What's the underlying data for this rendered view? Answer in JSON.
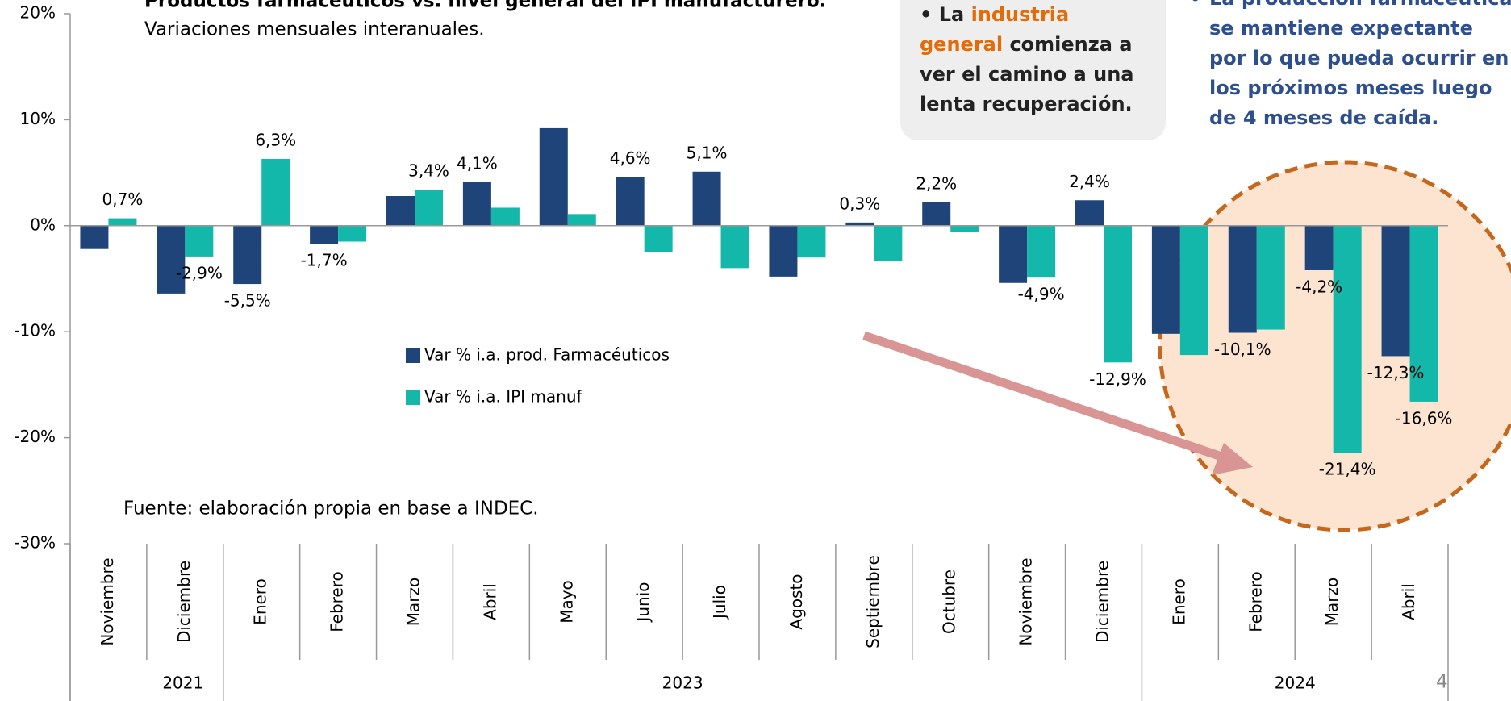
{
  "chart_data": {
    "type": "bar",
    "title": "Productos farmacéuticos vs. nivel general del IPI manufacturero.",
    "subtitle": "Variaciones mensuales interanuales.",
    "source": "Fuente: elaboración propia en base a INDEC.",
    "callout": {
      "bullet": "•",
      "prefix": "La",
      "highlight": "industria general",
      "rest": "comienza a ver el camino a una lenta recuperación."
    },
    "note": {
      "bullet": "•",
      "text": "La producción farmacéutica se mantiene expectante por lo que pueda ocurrir en los próximos meses luego de 4 meses de caída."
    },
    "page_number": 4,
    "categories": [
      "Noviembre",
      "Diciembre",
      "Enero",
      "Febrero",
      "Marzo",
      "Abril",
      "Mayo",
      "Junio",
      "Julio",
      "Agosto",
      "Septiembre",
      "Octubre",
      "Noviembre",
      "Diciembre",
      "Enero",
      "Febrero",
      "Marzo",
      "Abril"
    ],
    "groups": [
      {
        "label": "2021",
        "count": 2
      },
      {
        "label": "2023",
        "count": 12
      },
      {
        "label": "2024",
        "count": 4
      }
    ],
    "series": [
      {
        "name": "Var % i.a. prod. Farmacéuticos",
        "color": "#1f4479",
        "values": [
          -2.2,
          -6.4,
          -5.5,
          -1.7,
          2.8,
          4.1,
          9.2,
          4.6,
          5.1,
          -4.8,
          0.3,
          2.2,
          -5.4,
          2.4,
          -10.2,
          -10.1,
          -4.2,
          -12.3
        ],
        "value_labels": [
          null,
          null,
          "-5,5%",
          "-1,7%",
          null,
          "4,1%",
          null,
          "4,6%",
          "5,1%",
          null,
          "0,3%",
          "2,2%",
          null,
          "2,4%",
          null,
          "-10,1%",
          "-4,2%",
          "-12,3%"
        ]
      },
      {
        "name": "Var % i.a. IPI manuf",
        "color": "#13b8aa",
        "values": [
          0.7,
          -2.9,
          6.3,
          -1.5,
          3.4,
          1.7,
          1.1,
          -2.5,
          -4.0,
          -3.0,
          -3.3,
          -0.6,
          -4.9,
          -12.9,
          -12.2,
          -9.8,
          -21.4,
          -16.6
        ],
        "value_labels": [
          "0,7%",
          "-2,9%",
          "6,3%",
          null,
          "3,4%",
          null,
          null,
          null,
          null,
          null,
          null,
          null,
          "-4,9%",
          "-12,9%",
          null,
          null,
          "-21,4%",
          "-16,6%"
        ]
      }
    ],
    "ylim": [
      -30,
      20
    ],
    "yticks": [
      {
        "value": -30,
        "label": "-30%"
      },
      {
        "value": -20,
        "label": "-20%"
      },
      {
        "value": -10,
        "label": "-10%"
      },
      {
        "value": 0,
        "label": "0%"
      },
      {
        "value": 10,
        "label": "10%"
      },
      {
        "value": 20,
        "label": "20%"
      }
    ],
    "grid": false
  }
}
